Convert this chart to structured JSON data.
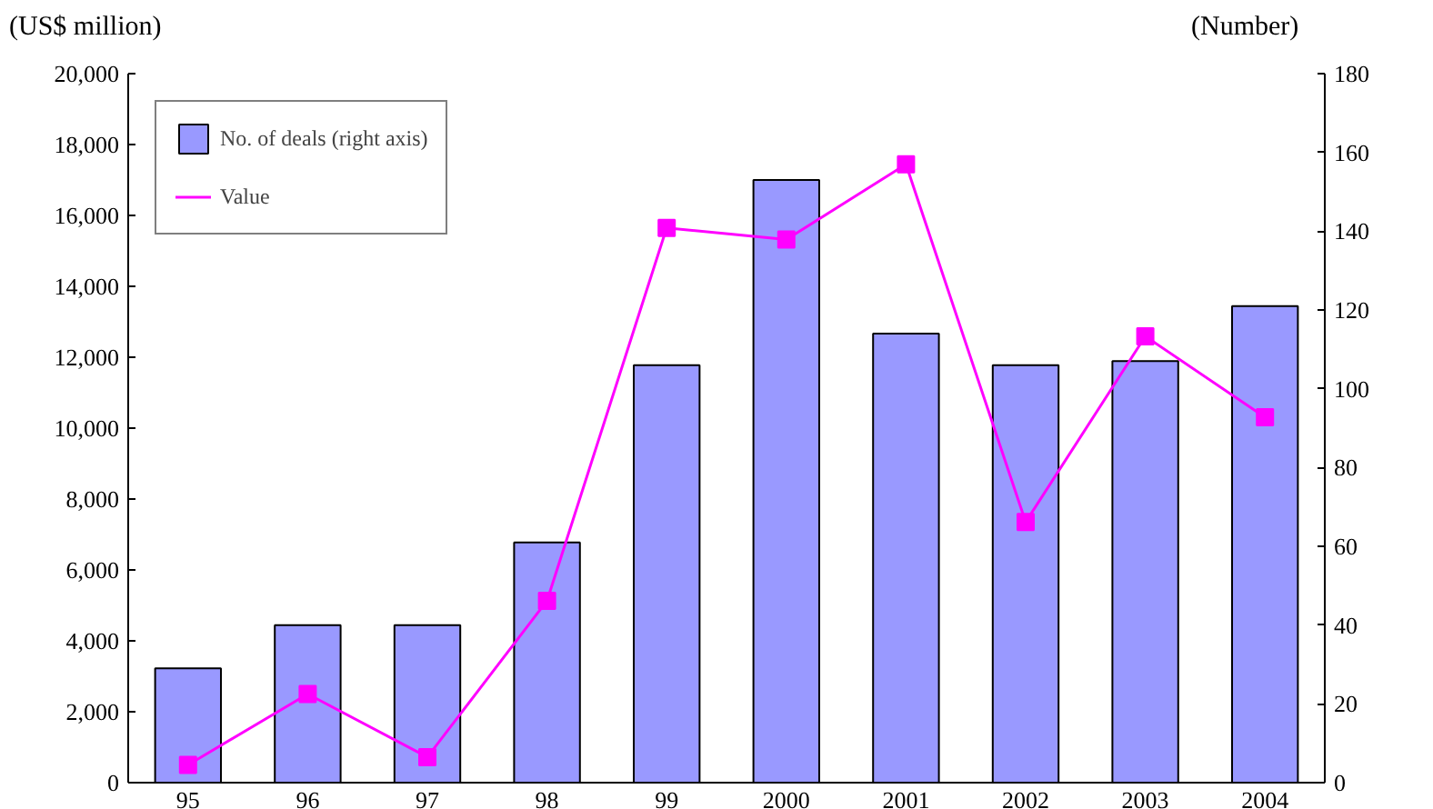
{
  "chart_data": {
    "type": "bar",
    "categories": [
      "95",
      "96",
      "97",
      "98",
      "99",
      "2000",
      "2001",
      "2002",
      "2003",
      "2004"
    ],
    "ylabel": "(US$ million)",
    "y2label": "(Number)",
    "series": [
      {
        "name": "No. of deals (right axis)",
        "axis": "y2",
        "color": "#9999ff",
        "values": [
          29,
          40,
          40,
          61,
          106,
          153,
          114,
          106,
          107,
          121
        ]
      },
      {
        "name": "Value",
        "type": "line",
        "color": "#ff00ff",
        "marker": "square",
        "values": [
          500,
          2500,
          720,
          5130,
          15650,
          15320,
          17440,
          7350,
          12590,
          10310
        ]
      }
    ],
    "ylim": [
      0,
      20000
    ],
    "yticks": [
      0,
      {
        "value": 2000,
        "label": "2,000"
      },
      {
        "value": 4000,
        "label": "4,000"
      },
      {
        "value": 6000,
        "label": "6,000"
      },
      {
        "value": 8000,
        "label": "8,000"
      },
      {
        "value": 10000,
        "label": "10,000"
      },
      {
        "value": 12000,
        "label": "12,000"
      },
      {
        "value": 14000,
        "label": "14,000"
      },
      {
        "value": 16000,
        "label": "16,000"
      },
      {
        "value": 18000,
        "label": "18,000"
      },
      {
        "value": 20000,
        "label": "20,000"
      }
    ],
    "y2lim": [
      0,
      180
    ],
    "y2ticks": [
      0,
      20,
      40,
      60,
      80,
      100,
      120,
      140,
      160,
      180
    ],
    "grid": false,
    "legend": "top left"
  }
}
